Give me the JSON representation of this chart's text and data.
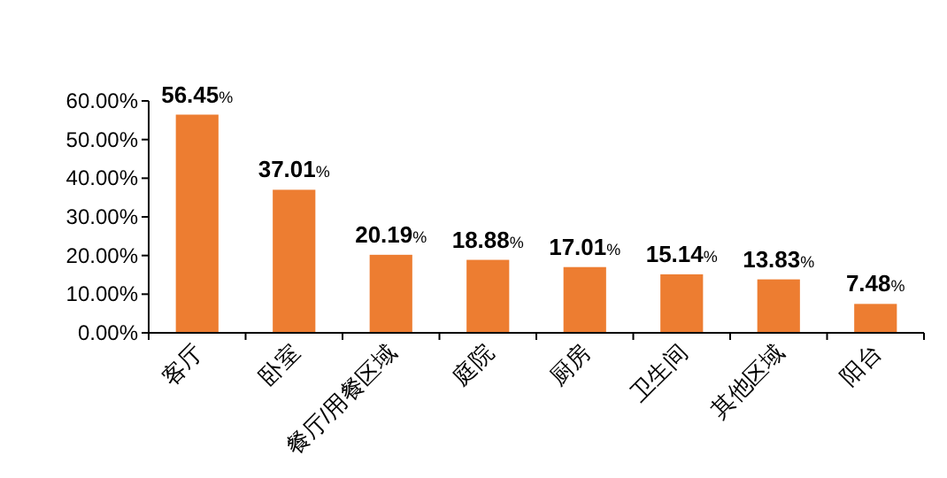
{
  "chart_data": {
    "type": "bar",
    "categories": [
      "客厅",
      "卧室",
      "餐厅/用餐区域",
      "庭院",
      "厨房",
      "卫生间",
      "其他区域",
      "阳台"
    ],
    "values": [
      56.45,
      37.01,
      20.19,
      18.88,
      17.01,
      15.14,
      13.83,
      7.48
    ],
    "value_labels": [
      "56.45%",
      "37.01%",
      "20.19%",
      "18.88%",
      "17.01%",
      "15.14%",
      "13.83%",
      "7.48%"
    ],
    "color": "#ed7d31",
    "ylim": [
      0,
      60
    ],
    "yticks": [
      {
        "value": 0,
        "label": "0.00%"
      },
      {
        "value": 10,
        "label": "10.00%"
      },
      {
        "value": 20,
        "label": "20.00%"
      },
      {
        "value": 30,
        "label": "30.00%"
      },
      {
        "value": 40,
        "label": "40.00%"
      },
      {
        "value": 50,
        "label": "50.00%"
      },
      {
        "value": 60,
        "label": "60.00%"
      }
    ],
    "grid": false
  }
}
